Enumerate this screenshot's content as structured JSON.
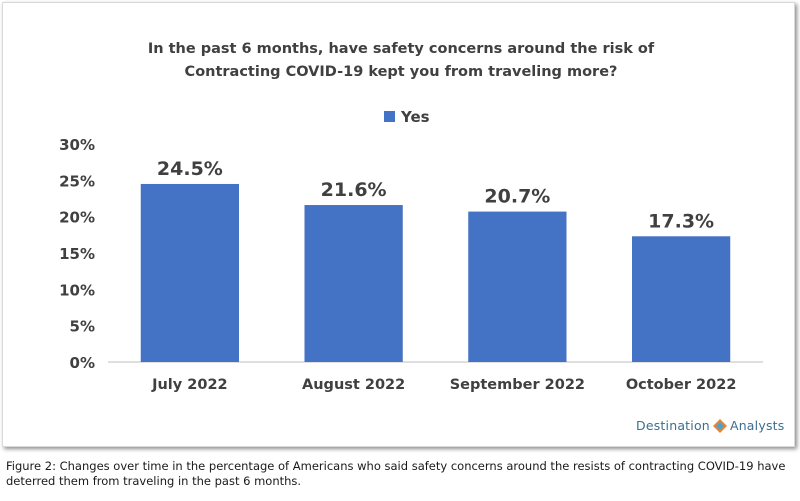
{
  "chart_data": {
    "type": "bar",
    "title": "In the past 6 months, have safety concerns around the risk of Contracting COVID-19 kept you from traveling more?",
    "title_lines": [
      "In the past 6 months, have safety concerns around the risk of",
      "Contracting COVID-19 kept you from traveling more?"
    ],
    "categories": [
      "July 2022",
      "August 2022",
      "September 2022",
      "October 2022"
    ],
    "series": [
      {
        "name": "Yes",
        "values": [
          24.5,
          21.6,
          20.7,
          17.3
        ],
        "color": "#4472c4"
      }
    ],
    "data_labels": [
      "24.5%",
      "21.6%",
      "20.7%",
      "17.3%"
    ],
    "ylim": [
      0,
      30
    ],
    "yticks": [
      "0%",
      "5%",
      "10%",
      "15%",
      "20%",
      "25%",
      "30%"
    ],
    "xlabel": "",
    "ylabel": "",
    "legend_position": "top",
    "grid": false
  },
  "brand": {
    "left": "Destination",
    "right": "Analysts"
  },
  "caption": "Figure 2: Changes over time in the percentage of Americans who said safety concerns around the resists of contracting COVID-19 have deterred them from traveling in the past 6 months."
}
